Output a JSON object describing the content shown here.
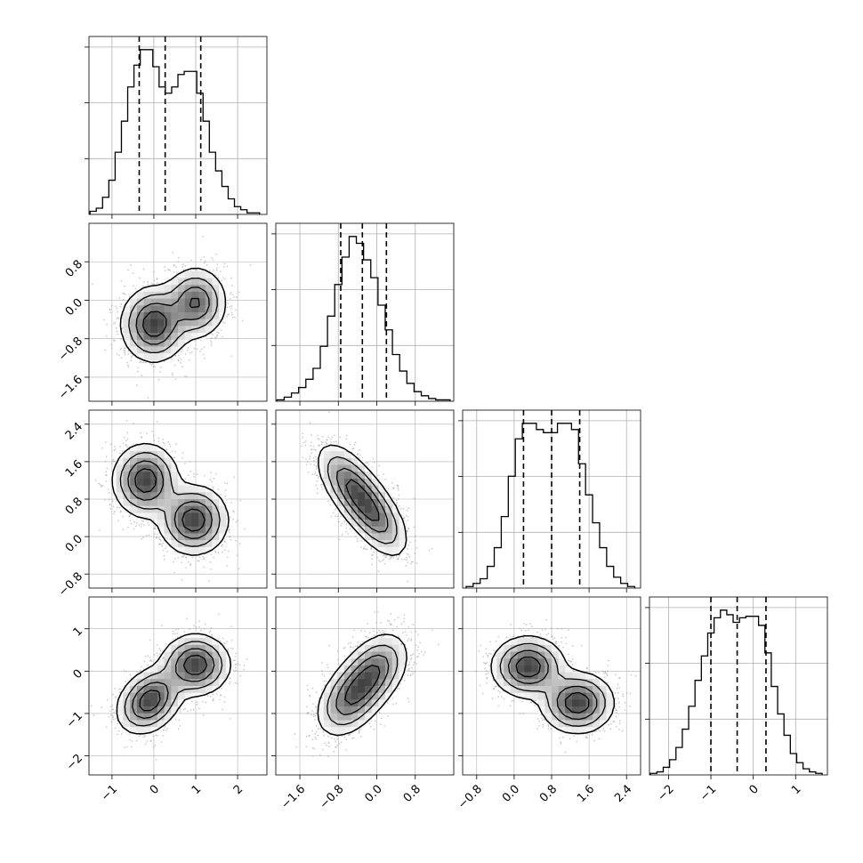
{
  "chart_data": {
    "type": "corner",
    "parameters": 4,
    "grid": true,
    "quantiles": [
      0.16,
      0.5,
      0.84
    ],
    "panels_1d": [
      {
        "index": 0,
        "range": [
          -1.55,
          2.7
        ],
        "median": 0.27,
        "q16": -0.35,
        "q84": 1.12,
        "hist_x": [
          -1.45,
          -1.3,
          -1.15,
          -1.0,
          -0.85,
          -0.7,
          -0.55,
          -0.4,
          -0.25,
          -0.1,
          0.05,
          0.2,
          0.35,
          0.5,
          0.65,
          0.8,
          0.95,
          1.1,
          1.25,
          1.4,
          1.55,
          1.7,
          1.85,
          2.0,
          2.15,
          2.3,
          2.45
        ],
        "hist_y": [
          2,
          4,
          11,
          22,
          40,
          60,
          82,
          96,
          106,
          106,
          95,
          82,
          78,
          82,
          90,
          92,
          92,
          78,
          60,
          40,
          28,
          18,
          10,
          5,
          3,
          1,
          1
        ]
      },
      {
        "index": 1,
        "range": [
          -2.1,
          1.6
        ],
        "median": -0.3,
        "q16": -0.75,
        "q84": 0.2,
        "hist_x": [
          -2.0,
          -1.85,
          -1.7,
          -1.55,
          -1.4,
          -1.25,
          -1.1,
          -0.95,
          -0.8,
          -0.65,
          -0.5,
          -0.35,
          -0.2,
          -0.05,
          0.1,
          0.25,
          0.4,
          0.55,
          0.7,
          0.85,
          1.0,
          1.15,
          1.3,
          1.45
        ],
        "hist_y": [
          1,
          3,
          6,
          10,
          16,
          24,
          40,
          62,
          85,
          105,
          120,
          115,
          103,
          90,
          70,
          52,
          34,
          22,
          13,
          7,
          4,
          2,
          1,
          1
        ]
      },
      {
        "index": 2,
        "range": [
          -1.1,
          2.7
        ],
        "median": 0.8,
        "q16": 0.2,
        "q84": 1.4,
        "hist_x": [
          -0.95,
          -0.8,
          -0.65,
          -0.5,
          -0.35,
          -0.2,
          -0.05,
          0.1,
          0.25,
          0.4,
          0.55,
          0.7,
          0.85,
          1.0,
          1.15,
          1.3,
          1.45,
          1.6,
          1.75,
          1.9,
          2.05,
          2.2,
          2.35,
          2.5
        ],
        "hist_y": [
          1,
          3,
          6,
          14,
          26,
          46,
          72,
          96,
          106,
          106,
          102,
          100,
          100,
          106,
          106,
          102,
          80,
          60,
          42,
          26,
          14,
          7,
          3,
          1
        ]
      },
      {
        "index": 3,
        "range": [
          -2.45,
          1.75
        ],
        "median": -0.38,
        "q16": -1.0,
        "q84": 0.3,
        "hist_x": [
          -2.35,
          -2.2,
          -2.05,
          -1.9,
          -1.75,
          -1.6,
          -1.45,
          -1.3,
          -1.15,
          -1.0,
          -0.85,
          -0.7,
          -0.55,
          -0.4,
          -0.25,
          -0.1,
          0.05,
          0.2,
          0.35,
          0.5,
          0.65,
          0.8,
          0.95,
          1.1,
          1.25,
          1.4,
          1.55
        ],
        "hist_y": [
          1,
          2,
          5,
          10,
          18,
          30,
          45,
          62,
          78,
          93,
          103,
          108,
          105,
          100,
          103,
          104,
          104,
          98,
          80,
          58,
          40,
          26,
          14,
          8,
          4,
          2,
          1
        ]
      }
    ],
    "panels_2d": [
      {
        "row": 1,
        "col": 0,
        "modes": [
          {
            "x": 0.0,
            "y": -0.5,
            "sx": 0.38,
            "sy": 0.38,
            "r": 0.0,
            "w": 0.55
          },
          {
            "x": 1.0,
            "y": -0.05,
            "sx": 0.36,
            "sy": 0.36,
            "r": 0.0,
            "w": 0.45
          }
        ]
      },
      {
        "row": 2,
        "col": 0,
        "modes": [
          {
            "x": -0.2,
            "y": 1.2,
            "sx": 0.38,
            "sy": 0.38,
            "r": 0.0,
            "w": 0.5
          },
          {
            "x": 0.95,
            "y": 0.35,
            "sx": 0.4,
            "sy": 0.36,
            "r": 0.0,
            "w": 0.5
          }
        ]
      },
      {
        "row": 2,
        "col": 1,
        "modes": [
          {
            "x": -0.55,
            "y": 1.1,
            "sx": 0.35,
            "sy": 0.45,
            "r": -0.6,
            "w": 0.5
          },
          {
            "x": -0.05,
            "y": 0.45,
            "sx": 0.35,
            "sy": 0.45,
            "r": -0.6,
            "w": 0.5
          }
        ]
      },
      {
        "row": 3,
        "col": 0,
        "modes": [
          {
            "x": -0.1,
            "y": -0.7,
            "sx": 0.38,
            "sy": 0.38,
            "r": 0.3,
            "w": 0.5
          },
          {
            "x": 1.0,
            "y": 0.15,
            "sx": 0.4,
            "sy": 0.35,
            "r": 0.0,
            "w": 0.5
          }
        ]
      },
      {
        "row": 3,
        "col": 1,
        "modes": [
          {
            "x": -0.55,
            "y": -0.65,
            "sx": 0.35,
            "sy": 0.45,
            "r": 0.4,
            "w": 0.5
          },
          {
            "x": -0.05,
            "y": 0.0,
            "sx": 0.35,
            "sy": 0.45,
            "r": 0.4,
            "w": 0.5
          }
        ]
      },
      {
        "row": 3,
        "col": 2,
        "modes": [
          {
            "x": 0.3,
            "y": 0.1,
            "sx": 0.38,
            "sy": 0.35,
            "r": 0.0,
            "w": 0.5
          },
          {
            "x": 1.35,
            "y": -0.75,
            "sx": 0.38,
            "sy": 0.35,
            "r": 0.0,
            "w": 0.5
          }
        ]
      }
    ],
    "x_ticks": [
      [
        "-1",
        "0",
        "1",
        "2"
      ],
      [
        "-1.6",
        "-0.8",
        "0.0",
        "0.8"
      ],
      [
        "-0.8",
        "0.0",
        "0.8",
        "1.6",
        "2.4"
      ],
      [
        "-2",
        "-1",
        "0",
        "1"
      ]
    ],
    "x_tick_values": [
      [
        -1,
        0,
        1,
        2
      ],
      [
        -1.6,
        -0.8,
        0.0,
        0.8
      ],
      [
        -0.8,
        0.0,
        0.8,
        1.6,
        2.4
      ],
      [
        -2,
        -1,
        0,
        1
      ]
    ],
    "y_ticks": {
      "row1": [
        "0.8",
        "0.0",
        "-0.8",
        "-1.6"
      ],
      "row2": [
        "2.4",
        "1.6",
        "0.8",
        "0.0",
        "-0.8"
      ],
      "row3": [
        "1",
        "0",
        "-1",
        "-2"
      ]
    },
    "y_tick_values": {
      "row1": [
        0.8,
        0.0,
        -0.8,
        -1.6
      ],
      "row2": [
        2.4,
        1.6,
        0.8,
        0.0,
        -0.8
      ],
      "row3": [
        1,
        0,
        -1,
        -2
      ]
    },
    "colors": {
      "line": "#000000",
      "grid": "#b0b0b0",
      "points": "#9a9a9a"
    }
  }
}
